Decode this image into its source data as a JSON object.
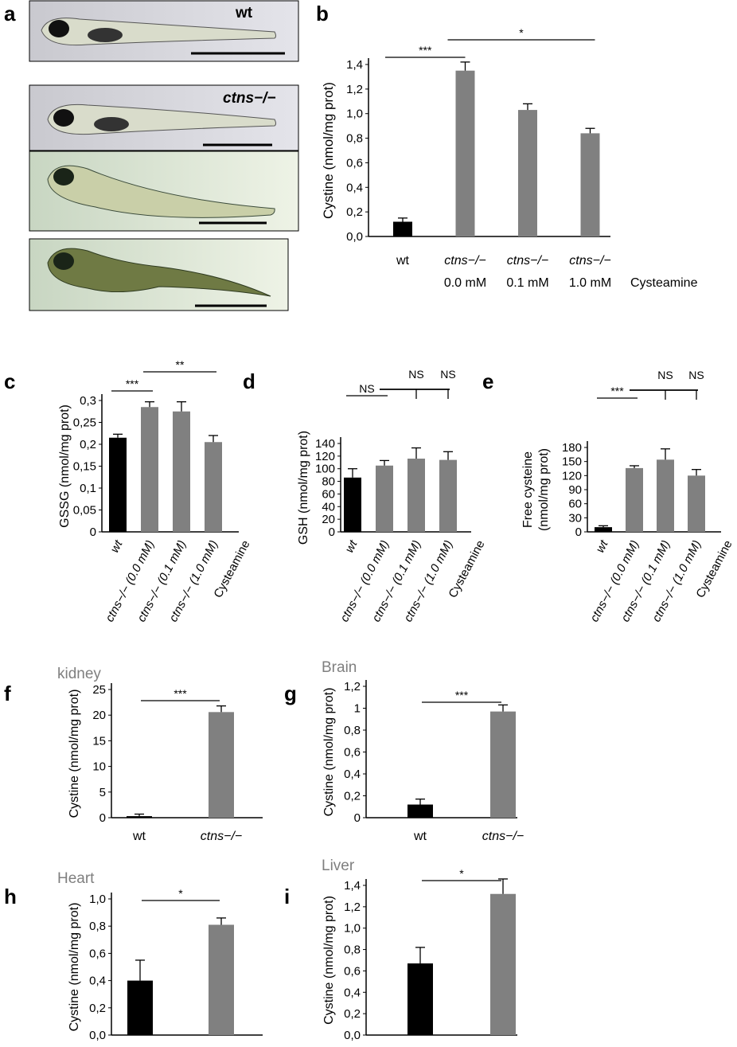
{
  "panel_labels": [
    "a",
    "b",
    "c",
    "d",
    "e",
    "f",
    "g",
    "h",
    "i"
  ],
  "panel_a": {
    "image_labels": [
      "wt",
      "ctns−/−"
    ]
  },
  "colors": {
    "wt_bar": "#000000",
    "ctns_bar": "#808080",
    "organ_title": "#7f7f7f"
  },
  "chart_data": [
    {
      "type": "bar",
      "panel": "b",
      "title": "",
      "ylabel": "Cystine (nmol/mg prot)",
      "ylim": [
        0,
        1.4
      ],
      "tick_labels": [
        "0,0",
        "0,2",
        "0,4",
        "0,6",
        "0,8",
        "1,0",
        "1,2",
        "1,4"
      ],
      "categories": [
        "wt",
        "ctns−/−",
        "ctns−/−",
        "ctns−/−"
      ],
      "category_sublabels": [
        "",
        "0.0 mM",
        "0.1 mM",
        "1.0 mM"
      ],
      "extra_xlabel": "Cysteamine",
      "values": [
        0.12,
        1.35,
        1.03,
        0.84
      ],
      "errors": [
        0.03,
        0.07,
        0.05,
        0.04
      ],
      "significance": [
        {
          "from": 0,
          "to": 1,
          "label": "***"
        },
        {
          "from": 1,
          "to": 3,
          "label": "*"
        }
      ]
    },
    {
      "type": "bar",
      "panel": "c",
      "title": "",
      "ylabel": "GSSG (nmol/mg prot)",
      "ylim": [
        0,
        0.3
      ],
      "tick_labels": [
        "0",
        "0,05",
        "0,1",
        "0,15",
        "0,2",
        "0,25",
        "0,3"
      ],
      "categories": [
        "wt",
        "ctns−/− (0.0 mM)",
        "ctns−/− (0.1 mM)",
        "ctns−/− (1.0 mM)"
      ],
      "extra_xlabel": "Cysteamine",
      "values": [
        0.215,
        0.285,
        0.275,
        0.205
      ],
      "errors": [
        0.008,
        0.012,
        0.022,
        0.015
      ],
      "significance": [
        {
          "from": 0,
          "to": 1,
          "label": "***"
        },
        {
          "from": 1,
          "to": 3,
          "label": "**"
        }
      ]
    },
    {
      "type": "bar",
      "panel": "d",
      "title": "",
      "ylabel": "GSH (nmol/mg prot)",
      "ylim": [
        0,
        140
      ],
      "tick_labels": [
        "0",
        "20",
        "40",
        "60",
        "80",
        "100",
        "120",
        "140"
      ],
      "categories": [
        "wt",
        "ctns−/− (0.0 mM)",
        "ctns−/− (0.1 mM)",
        "ctns−/− (1.0 mM)"
      ],
      "extra_xlabel": "Cysteamine",
      "values": [
        86,
        105,
        116,
        114
      ],
      "errors": [
        14,
        8,
        17,
        13
      ],
      "significance": [
        {
          "from": 0,
          "to": 1,
          "label": "NS"
        },
        {
          "from": 1,
          "to": 2,
          "label": "NS"
        },
        {
          "from": 1,
          "to": 3,
          "label": "NS"
        }
      ]
    },
    {
      "type": "bar",
      "panel": "e",
      "title": "",
      "ylabel": "Free cysteine (nmol/mg prot)",
      "ylabel_lines": [
        "Free cysteine",
        "(nmol/mg prot)"
      ],
      "ylim": [
        0,
        180
      ],
      "tick_labels": [
        "0",
        "30",
        "60",
        "90",
        "120",
        "150",
        "180"
      ],
      "categories": [
        "wt",
        "ctns−/− (0.0 mM)",
        "ctns−/− (0.1 mM)",
        "ctns−/− (1.0 mM)"
      ],
      "extra_xlabel": "Cysteamine",
      "values": [
        10,
        136,
        154,
        120
      ],
      "errors": [
        3,
        5,
        23,
        13
      ],
      "significance": [
        {
          "from": 0,
          "to": 1,
          "label": "***"
        },
        {
          "from": 1,
          "to": 2,
          "label": "NS"
        },
        {
          "from": 1,
          "to": 3,
          "label": "NS"
        }
      ]
    },
    {
      "type": "bar",
      "panel": "f",
      "title": "kidney",
      "ylabel": "Cystine (nmol/mg prot)",
      "ylim": [
        0,
        25
      ],
      "tick_labels": [
        "0",
        "5",
        "10",
        "15",
        "20",
        "25"
      ],
      "categories": [
        "wt",
        "ctns−/−"
      ],
      "values": [
        0.3,
        20.6
      ],
      "errors": [
        0.4,
        1.2
      ],
      "significance": [
        {
          "from": 0,
          "to": 1,
          "label": "***"
        }
      ]
    },
    {
      "type": "bar",
      "panel": "g",
      "title": "Brain",
      "ylabel": "Cystine (nmol/mg prot)",
      "ylim": [
        0,
        1.2
      ],
      "tick_labels": [
        "0",
        "0,2",
        "0,4",
        "0,6",
        "0,8",
        "1",
        "1,2"
      ],
      "categories": [
        "wt",
        "ctns−/−"
      ],
      "values": [
        0.12,
        0.97
      ],
      "errors": [
        0.05,
        0.06
      ],
      "significance": [
        {
          "from": 0,
          "to": 1,
          "label": "***"
        }
      ]
    },
    {
      "type": "bar",
      "panel": "h",
      "title": "Heart",
      "ylabel": "Cystine (nmol/mg prot)",
      "ylim": [
        0,
        1.0
      ],
      "tick_labels": [
        "0,0",
        "0,2",
        "0,4",
        "0,6",
        "0,8",
        "1,0"
      ],
      "categories": [
        "wt",
        "ctns−/−"
      ],
      "values": [
        0.4,
        0.81
      ],
      "errors": [
        0.15,
        0.05
      ],
      "significance": [
        {
          "from": 0,
          "to": 1,
          "label": "*"
        }
      ]
    },
    {
      "type": "bar",
      "panel": "i",
      "title": "Liver",
      "ylabel": "Cystine (nmol/mg prot)",
      "ylim": [
        0,
        1.4
      ],
      "tick_labels": [
        "0,0",
        "0,2",
        "0,4",
        "0,6",
        "0,8",
        "1,0",
        "1,2",
        "1,4"
      ],
      "categories": [
        "wt",
        "ctns−/−"
      ],
      "values": [
        0.67,
        1.32
      ],
      "errors": [
        0.15,
        0.14
      ],
      "significance": [
        {
          "from": 0,
          "to": 1,
          "label": "*"
        }
      ]
    }
  ]
}
